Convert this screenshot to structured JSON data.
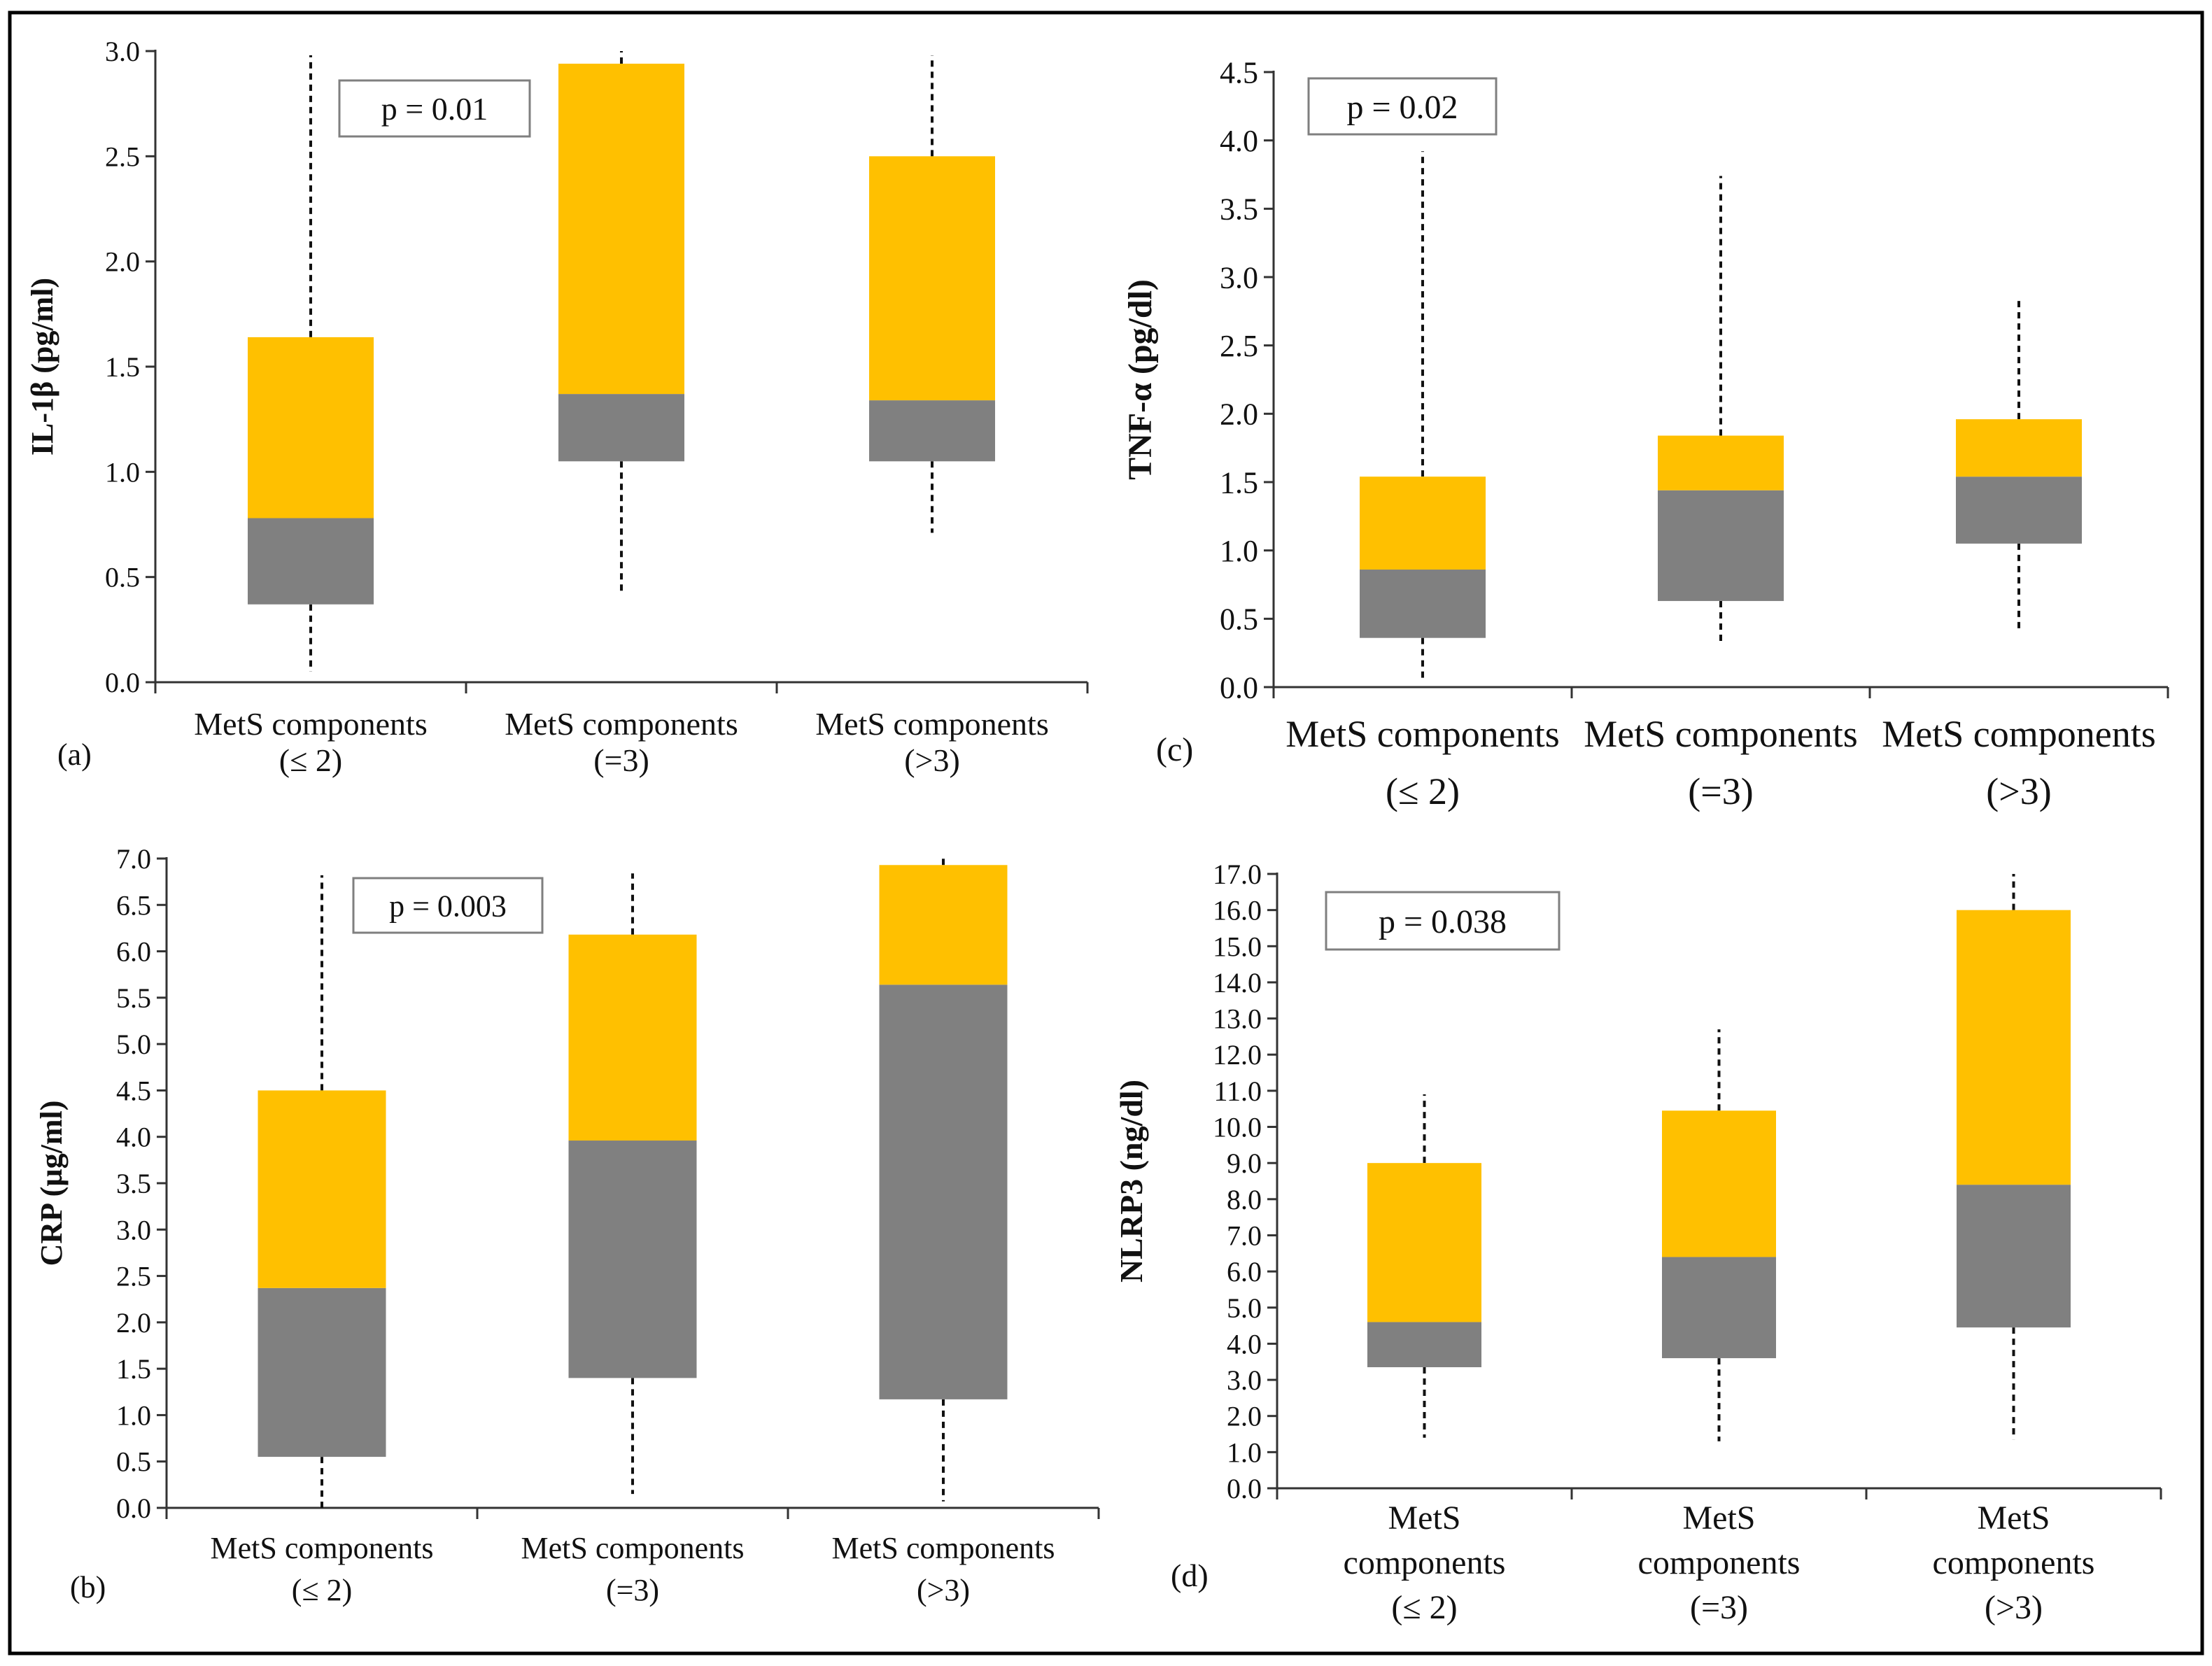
{
  "colors": {
    "upper_box": "#FFC000",
    "lower_box": "#808080",
    "axis": "#333333",
    "whisker": "#111111",
    "frame": "#000000"
  },
  "chart_data": [
    {
      "id": "a",
      "panel_label": "(a)",
      "type": "box",
      "ylabel": "IL-1β (pg/ml)",
      "ylim": [
        0,
        3.0
      ],
      "ytick_step": 0.5,
      "ytick_decimals": 1,
      "categories": [
        [
          "MetS components",
          "(≤ 2)"
        ],
        [
          "MetS components",
          "(=3)"
        ],
        [
          "MetS components",
          "(>3)"
        ]
      ],
      "min": [
        0.05,
        0.43,
        0.71
      ],
      "q1": [
        0.37,
        1.05,
        1.05
      ],
      "median": [
        0.78,
        1.37,
        1.34
      ],
      "q3": [
        1.64,
        2.94,
        2.5
      ],
      "max": [
        2.98,
        3.0,
        2.98
      ],
      "annotation": "p = 0.01"
    },
    {
      "id": "b",
      "panel_label": "(b)",
      "type": "box",
      "ylabel": "CRP (µg/ml)",
      "ylim": [
        0,
        7.0
      ],
      "ytick_step": 0.5,
      "ytick_decimals": 1,
      "categories": [
        [
          "MetS components",
          "(≤ 2)"
        ],
        [
          "MetS components",
          "(=3)"
        ],
        [
          "MetS components",
          "(>3)"
        ]
      ],
      "min": [
        0.0,
        0.15,
        0.07
      ],
      "q1": [
        0.55,
        1.4,
        1.17
      ],
      "median": [
        2.37,
        3.96,
        5.64
      ],
      "q3": [
        4.5,
        6.18,
        6.93
      ],
      "max": [
        6.82,
        6.84,
        7.0
      ],
      "annotation": "p = 0.003"
    },
    {
      "id": "c",
      "panel_label": "(c)",
      "type": "box",
      "ylabel": "TNF-α (pg/dl)",
      "ylim": [
        0,
        4.5
      ],
      "ytick_step": 0.5,
      "ytick_decimals": 1,
      "categories": [
        [
          "MetS components",
          "(≤ 2)"
        ],
        [
          "MetS components",
          "(=3)"
        ],
        [
          "MetS components",
          "(>3)"
        ]
      ],
      "min": [
        0.06,
        0.31,
        0.42
      ],
      "q1": [
        0.36,
        0.63,
        1.05
      ],
      "median": [
        0.86,
        1.44,
        1.54
      ],
      "q3": [
        1.54,
        1.84,
        1.96
      ],
      "max": [
        3.92,
        3.74,
        2.84
      ],
      "annotation": "p = 0.02"
    },
    {
      "id": "d",
      "panel_label": "(d)",
      "type": "box",
      "ylabel": "NLRP3 (ng/dl)",
      "ylim": [
        0,
        17.0
      ],
      "ytick_step": 1.0,
      "ytick_decimals": 1,
      "categories": [
        [
          "MetS",
          "components",
          "(≤ 2)"
        ],
        [
          "MetS",
          "components",
          "(=3)"
        ],
        [
          "MetS",
          "components",
          "(>3)"
        ]
      ],
      "min": [
        1.4,
        1.3,
        1.35
      ],
      "q1": [
        3.35,
        3.6,
        4.45
      ],
      "median": [
        4.6,
        6.4,
        8.4
      ],
      "q3": [
        9.0,
        10.45,
        16.0
      ],
      "max": [
        10.9,
        12.7,
        17.0
      ],
      "annotation": "p = 0.038"
    }
  ]
}
